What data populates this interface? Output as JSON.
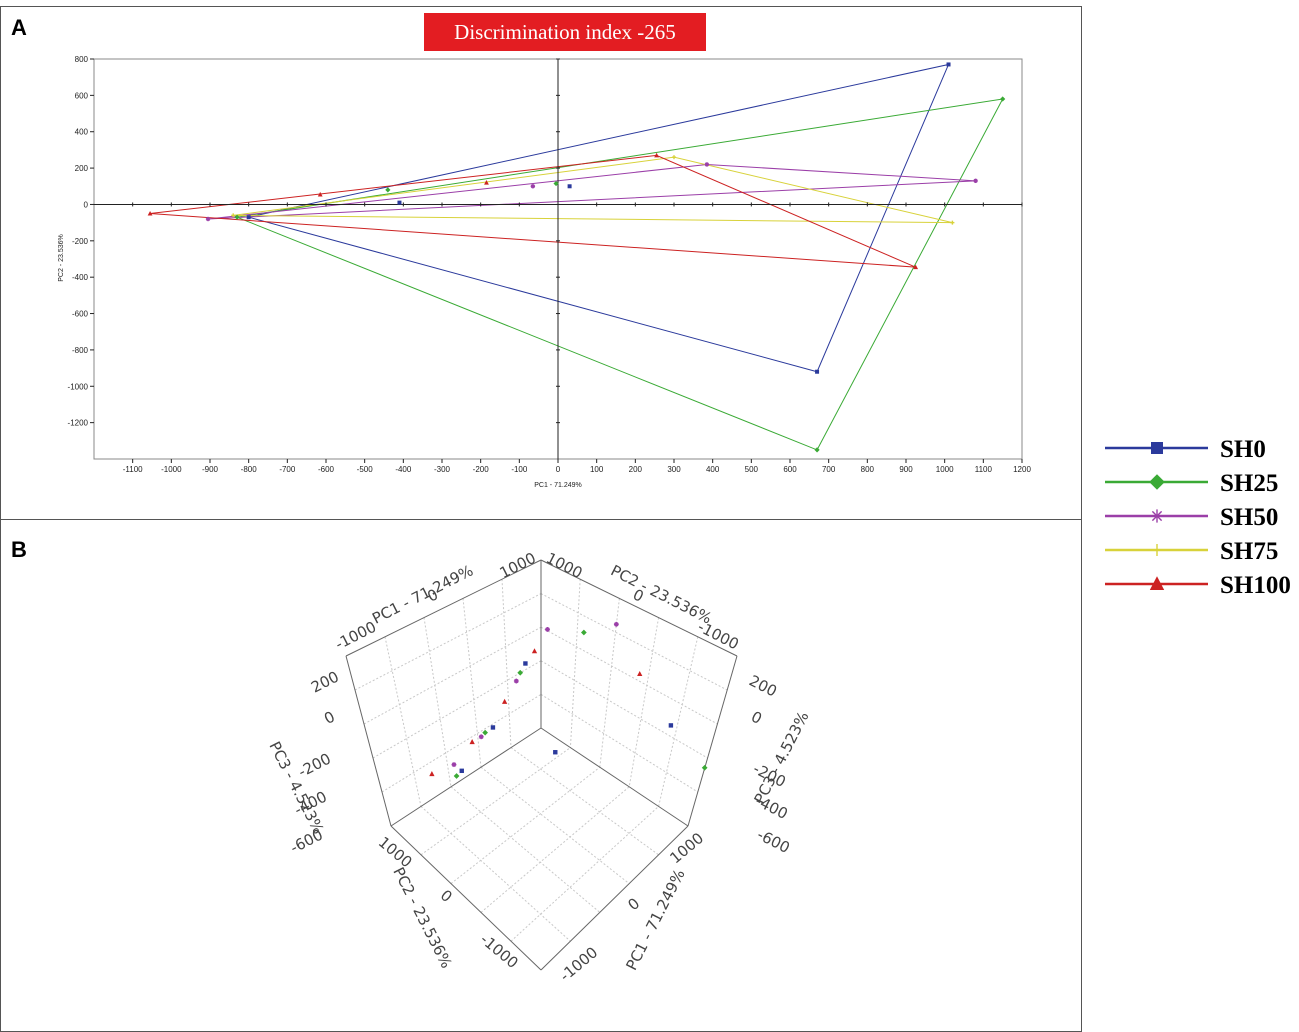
{
  "panel_labels": {
    "a": "A",
    "b": "B"
  },
  "chart_data": [
    {
      "type": "scatter",
      "title": "Discrimination index -265",
      "title_bg_color": "#e31d22",
      "xlabel": "PC1 - 71.249%",
      "ylabel": "PC2 - 23.536%",
      "xlim": [
        -1200,
        1200
      ],
      "ylim": [
        -1400,
        800
      ],
      "xticks": [
        "-1100",
        "-1000",
        "-900",
        "-800",
        "-700",
        "-600",
        "-500",
        "-400",
        "-300",
        "-200",
        "-100",
        "0",
        "100",
        "200",
        "300",
        "400",
        "500",
        "600",
        "700",
        "800",
        "900",
        "1000",
        "1100",
        "1200"
      ],
      "yticks": [
        "800",
        "600",
        "400",
        "200",
        "0",
        "-200",
        "-400",
        "-600",
        "-800",
        "-1000",
        "-1200"
      ],
      "legend_position": "right",
      "series": [
        {
          "name": "SH0",
          "color": "#2b3a9c",
          "marker": "square",
          "points": [
            [
              -410,
              10
            ],
            [
              30,
              100
            ],
            [
              -800,
              -70
            ],
            [
              1010,
              770
            ],
            [
              670,
              -920
            ]
          ],
          "hull": [
            [
              -800,
              -70
            ],
            [
              1010,
              770
            ],
            [
              670,
              -920
            ]
          ]
        },
        {
          "name": "SH25",
          "color": "#3aaa35",
          "marker": "diamond",
          "points": [
            [
              -440,
              80
            ],
            [
              -5,
              115
            ],
            [
              -830,
              -70
            ],
            [
              1150,
              580
            ],
            [
              670,
              -1350
            ]
          ],
          "hull": [
            [
              -830,
              -70
            ],
            [
              1150,
              580
            ],
            [
              670,
              -1350
            ]
          ]
        },
        {
          "name": "SH50",
          "color": "#9b3fa8",
          "marker": "star",
          "points": [
            [
              -65,
              100
            ],
            [
              385,
              220
            ],
            [
              -905,
              -80
            ],
            [
              1080,
              130
            ]
          ],
          "hull": [
            [
              -905,
              -80
            ],
            [
              385,
              220
            ],
            [
              1080,
              130
            ]
          ]
        },
        {
          "name": "SH75",
          "color": "#d8d23a",
          "marker": "plus",
          "points": [
            [
              300,
              260
            ],
            [
              -840,
              -60
            ],
            [
              1020,
              -100
            ]
          ],
          "hull": [
            [
              -840,
              -60
            ],
            [
              300,
              260
            ],
            [
              1020,
              -100
            ]
          ]
        },
        {
          "name": "SH100",
          "color": "#cc2222",
          "marker": "triangle",
          "points": [
            [
              -615,
              55
            ],
            [
              -185,
              120
            ],
            [
              255,
              270
            ],
            [
              -1055,
              -50
            ],
            [
              925,
              -345
            ]
          ],
          "hull": [
            [
              -1055,
              -50
            ],
            [
              255,
              270
            ],
            [
              925,
              -345
            ]
          ]
        }
      ]
    },
    {
      "type": "scatter",
      "subtype": "3d",
      "axes": {
        "pc1": {
          "label": "PC1 - 71.249%",
          "ticks": [
            "-1000",
            "0",
            "1000"
          ]
        },
        "pc2": {
          "label": "PC2 - 23.536%",
          "ticks": [
            "1000",
            "0",
            "-1000"
          ]
        },
        "pc3": {
          "label": "PC3 - 4.523%",
          "ticks": [
            "200",
            "0",
            "-200",
            "-400",
            "-600"
          ]
        }
      },
      "points": [
        {
          "series": "SH50",
          "color": "#9b3fa8",
          "marker": "star",
          "x": 0.005,
          "y": 0.107
        },
        {
          "series": "SH25",
          "color": "#3aaa35",
          "marker": "diamond",
          "x": 0.033,
          "y": 0.11
        },
        {
          "series": "SH50",
          "color": "#9b3fa8",
          "marker": "star",
          "x": 0.058,
          "y": 0.102
        },
        {
          "series": "SH100",
          "color": "#cc2222",
          "marker": "triangle",
          "x": -0.005,
          "y": 0.128
        },
        {
          "series": "SH0",
          "color": "#2b3a9c",
          "marker": "square",
          "x": -0.012,
          "y": 0.14
        },
        {
          "series": "SH25",
          "color": "#3aaa35",
          "marker": "diamond",
          "x": -0.016,
          "y": 0.149
        },
        {
          "series": "SH50",
          "color": "#9b3fa8",
          "marker": "star",
          "x": -0.019,
          "y": 0.157
        },
        {
          "series": "SH100",
          "color": "#cc2222",
          "marker": "triangle",
          "x": 0.076,
          "y": 0.15
        },
        {
          "series": "SH100",
          "color": "#cc2222",
          "marker": "triangle",
          "x": -0.028,
          "y": 0.177
        },
        {
          "series": "SH0",
          "color": "#2b3a9c",
          "marker": "square",
          "x": 0.1,
          "y": 0.2
        },
        {
          "series": "SH0",
          "color": "#2b3a9c",
          "marker": "square",
          "x": -0.037,
          "y": 0.202
        },
        {
          "series": "SH25",
          "color": "#3aaa35",
          "marker": "diamond",
          "x": -0.043,
          "y": 0.207
        },
        {
          "series": "SH50",
          "color": "#9b3fa8",
          "marker": "star",
          "x": -0.046,
          "y": 0.211
        },
        {
          "series": "SH100",
          "color": "#cc2222",
          "marker": "triangle",
          "x": -0.053,
          "y": 0.216
        },
        {
          "series": "SH0",
          "color": "#2b3a9c",
          "marker": "square",
          "x": 0.011,
          "y": 0.226
        },
        {
          "series": "SH50",
          "color": "#9b3fa8",
          "marker": "star",
          "x": -0.067,
          "y": 0.238
        },
        {
          "series": "SH0",
          "color": "#2b3a9c",
          "marker": "square",
          "x": -0.061,
          "y": 0.244
        },
        {
          "series": "SH25",
          "color": "#3aaa35",
          "marker": "diamond",
          "x": -0.065,
          "y": 0.249
        },
        {
          "series": "SH100",
          "color": "#cc2222",
          "marker": "triangle",
          "x": -0.084,
          "y": 0.247
        },
        {
          "series": "SH25",
          "color": "#3aaa35",
          "marker": "diamond",
          "x": 0.126,
          "y": 0.241
        }
      ]
    }
  ],
  "legend": [
    {
      "name": "SH0",
      "color": "#2b3a9c",
      "marker": "square"
    },
    {
      "name": "SH25",
      "color": "#3aaa35",
      "marker": "diamond"
    },
    {
      "name": "SH50",
      "color": "#9b3fa8",
      "marker": "star"
    },
    {
      "name": "SH75",
      "color": "#d8d23a",
      "marker": "plus"
    },
    {
      "name": "SH100",
      "color": "#cc2222",
      "marker": "triangle"
    }
  ]
}
